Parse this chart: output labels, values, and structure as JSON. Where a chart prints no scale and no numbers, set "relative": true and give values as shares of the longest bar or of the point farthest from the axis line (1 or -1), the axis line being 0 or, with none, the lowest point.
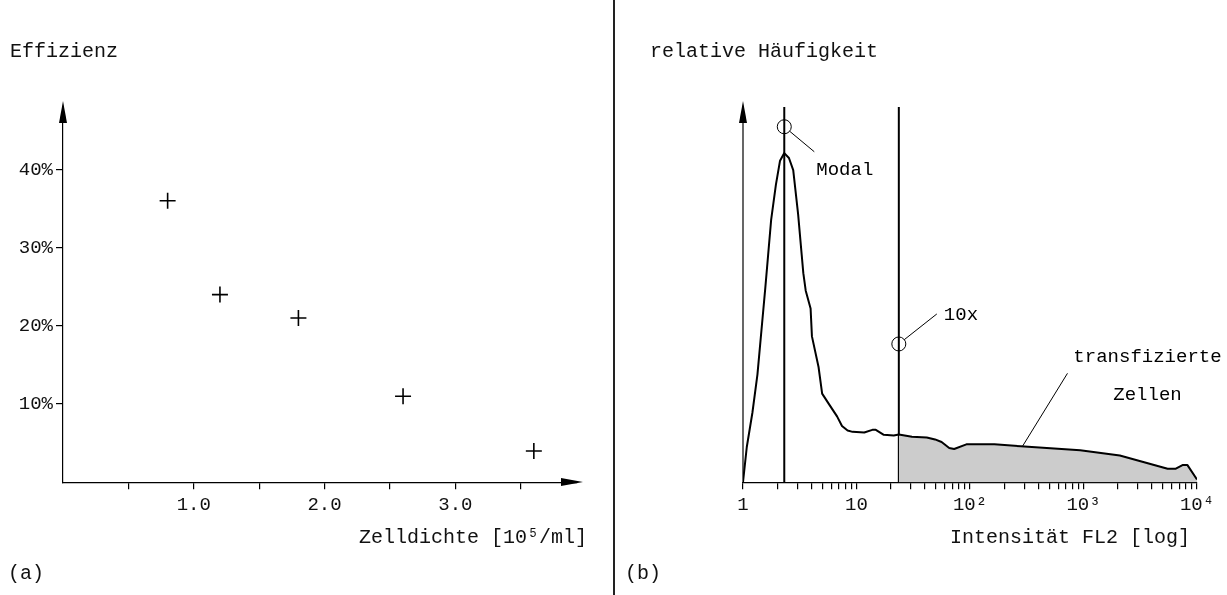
{
  "chart_data": [
    {
      "type": "scatter",
      "ylabel": "Effizienz",
      "xlabel": "Zelldichte [10⁵/ml]",
      "annotations": [
        "(a)"
      ],
      "x": [
        0.8,
        1.2,
        1.8,
        2.6,
        3.6
      ],
      "values": [
        36,
        24,
        21,
        11,
        4
      ],
      "color": "#000000",
      "marker": "cross",
      "xlim": [
        0,
        3.93
      ],
      "ylim": [
        0,
        48
      ],
      "xticks": [
        {
          "value": 0.5,
          "label": null
        },
        {
          "value": 1,
          "label": "1.0"
        },
        {
          "value": 1.5,
          "label": null
        },
        {
          "value": 2,
          "label": "2.0"
        },
        {
          "value": 2.5,
          "label": null
        },
        {
          "value": 3,
          "label": "3.0"
        },
        {
          "value": 3.5,
          "label": null
        }
      ],
      "yticks": [
        {
          "value": 10,
          "label": "10%"
        },
        {
          "value": 20,
          "label": "20%"
        },
        {
          "value": 30,
          "label": "30%"
        },
        {
          "value": 40,
          "label": "40%"
        }
      ]
    },
    {
      "type": "line",
      "ylabel": "relative Häufigkeit",
      "xlabel": "Intensität FL2 [log]",
      "relative": true,
      "log": "x",
      "marker": "none",
      "xlim": [
        1,
        10000
      ],
      "xticks": [
        1,
        {
          "value": 2,
          "label": null
        },
        {
          "value": 3,
          "label": null
        },
        {
          "value": 4,
          "label": null
        },
        {
          "value": 5,
          "label": null
        },
        {
          "value": 6,
          "label": null
        },
        {
          "value": 7,
          "label": null
        },
        {
          "value": 8,
          "label": null
        },
        {
          "value": 9,
          "label": null
        },
        10,
        {
          "value": 20,
          "label": null
        },
        {
          "value": 30,
          "label": null
        },
        {
          "value": 40,
          "label": null
        },
        {
          "value": 50,
          "label": null
        },
        {
          "value": 60,
          "label": null
        },
        {
          "value": 70,
          "label": null
        },
        {
          "value": 80,
          "label": null
        },
        {
          "value": 90,
          "label": null
        },
        {
          "value": 100,
          "label": "10²"
        },
        {
          "value": 200,
          "label": null
        },
        {
          "value": 300,
          "label": null
        },
        {
          "value": 400,
          "label": null
        },
        {
          "value": 500,
          "label": null
        },
        {
          "value": 600,
          "label": null
        },
        {
          "value": 700,
          "label": null
        },
        {
          "value": 800,
          "label": null
        },
        {
          "value": 900,
          "label": null
        },
        {
          "value": 1000,
          "label": "10³"
        },
        {
          "value": 2000,
          "label": null
        },
        {
          "value": 3000,
          "label": null
        },
        {
          "value": 4000,
          "label": null
        },
        {
          "value": 5000,
          "label": null
        },
        {
          "value": 6000,
          "label": null
        },
        {
          "value": 7000,
          "label": null
        },
        {
          "value": 8000,
          "label": null
        },
        {
          "value": 9000,
          "label": null
        },
        {
          "value": 10000,
          "label": "10⁴"
        }
      ],
      "series": [
        {
          "type": "line",
          "color": "#000000",
          "x": [
            1,
            1.08,
            1.21,
            1.34,
            1.57,
            1.77,
            1.95,
            2.12,
            2.31,
            2.54,
            2.77,
            3.06,
            3.4,
            3.57,
            3.94,
            4.05,
            4.63,
            4.98,
            5.7,
            6.74,
            7.45,
            8.35,
            9.23,
            11.7,
            13.8,
            14.8,
            17.4,
            21.3,
            23.6,
            30.8,
            41.6,
            49.2,
            56.2,
            65.6,
            72.5,
            92.9,
            164,
            280,
            935,
            2090,
            5510,
            6510,
            7450,
            8240,
            10000
          ],
          "values": [
            0,
            0.107,
            0.211,
            0.327,
            0.588,
            0.797,
            0.904,
            0.977,
            1,
            0.985,
            0.948,
            0.814,
            0.635,
            0.582,
            0.528,
            0.443,
            0.35,
            0.269,
            0.238,
            0.2,
            0.171,
            0.157,
            0.153,
            0.151,
            0.159,
            0.159,
            0.144,
            0.142,
            0.145,
            0.138,
            0.136,
            0.13,
            0.122,
            0.104,
            0.101,
            0.115,
            0.115,
            0.109,
            0.097,
            0.081,
            0.041,
            0.041,
            0.052,
            0.052,
            0.008
          ]
        },
        {
          "type": "area",
          "color": "#cccccc",
          "x": [
            23.6,
            30.8,
            41.6,
            49.2,
            56.2,
            65.6,
            72.5,
            92.9,
            164,
            280,
            935,
            2090,
            5510,
            6510,
            7450,
            8240,
            10000
          ],
          "values": [
            0.145,
            0.138,
            0.136,
            0.13,
            0.122,
            0.104,
            0.101,
            0.115,
            0.115,
            0.109,
            0.097,
            0.081,
            0.041,
            0.041,
            0.052,
            0.052,
            0.008
          ]
        }
      ],
      "ref_lines": [
        {
          "axis": "x",
          "value": 2.31
        },
        {
          "axis": "x",
          "value": 23.6
        }
      ],
      "annotations": [
        "(b)",
        {
          "text": "Modal",
          "x": 2.31,
          "y": 1.08
        },
        {
          "text": "10x",
          "x": 23.6,
          "y": 0.42
        },
        {
          "text": "transfizierte Zellen",
          "x": 290,
          "y": 0.109
        }
      ]
    }
  ]
}
